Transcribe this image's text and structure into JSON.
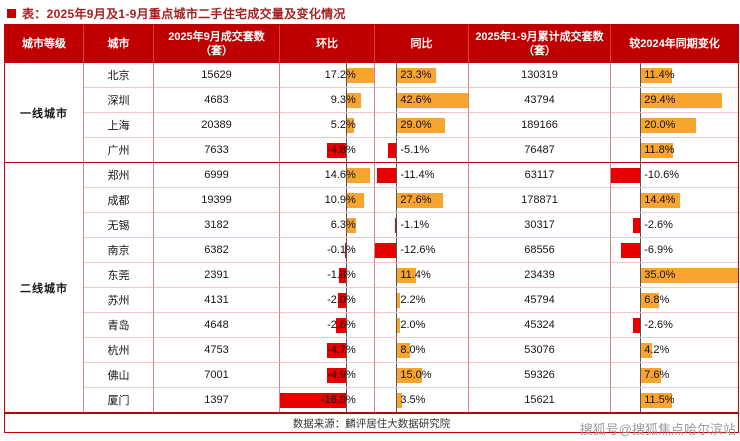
{
  "page": {
    "title": "表：2025年9月及1-9月重点城市二手住宅成交量及变化情况",
    "source": "数据来源：麟评居住大数据研究院",
    "watermark": "搜狐号@搜狐焦点哈尔滨站"
  },
  "colors": {
    "header_bg": "#c00000",
    "title_color": "#a52020",
    "positive_bar": "#f7a430",
    "negative_bar": "#e80000",
    "grid_v": "#d98080",
    "grid_h": "#f2c6c6"
  },
  "table": {
    "headers": [
      "城市等级",
      "城市",
      "2025年9月成交套数（套）",
      "环比",
      "同比",
      "2025年1-9月累计成交套数（套）",
      "较2024年同期变化"
    ],
    "bar_config": {
      "mom": {
        "axis_pct": 70,
        "pos_max": 17.2,
        "neg_max": 16.9,
        "text": "right"
      },
      "yoy": {
        "axis_pct": 23,
        "pos_max": 42.6,
        "neg_max": 12.6,
        "text": "left"
      },
      "chg": {
        "axis_pct": 23,
        "pos_max": 35.0,
        "neg_max": 10.6,
        "text": "left"
      }
    },
    "tiers": [
      {
        "label": "一线城市",
        "rows": [
          {
            "city": "北京",
            "sep": "15629",
            "mom": 17.2,
            "yoy": 23.3,
            "cum": "130319",
            "chg": 11.4
          },
          {
            "city": "深圳",
            "sep": "4683",
            "mom": 9.3,
            "yoy": 42.6,
            "cum": "43794",
            "chg": 29.4
          },
          {
            "city": "上海",
            "sep": "20389",
            "mom": 5.2,
            "yoy": 29.0,
            "cum": "189166",
            "chg": 20.0
          },
          {
            "city": "广州",
            "sep": "7633",
            "mom": -4.8,
            "yoy": -5.1,
            "cum": "76487",
            "chg": 11.8
          }
        ]
      },
      {
        "label": "二线城市",
        "rows": [
          {
            "city": "郑州",
            "sep": "6999",
            "mom": 14.6,
            "yoy": -11.4,
            "cum": "63117",
            "chg": -10.6
          },
          {
            "city": "成都",
            "sep": "19399",
            "mom": 10.9,
            "yoy": 27.6,
            "cum": "178871",
            "chg": 14.4
          },
          {
            "city": "无锡",
            "sep": "3182",
            "mom": 6.3,
            "yoy": -1.1,
            "cum": "30317",
            "chg": -2.6
          },
          {
            "city": "南京",
            "sep": "6382",
            "mom": -0.1,
            "yoy": -12.6,
            "cum": "68556",
            "chg": -6.9
          },
          {
            "city": "东莞",
            "sep": "2391",
            "mom": -1.8,
            "yoy": 11.4,
            "cum": "23439",
            "chg": 35.0
          },
          {
            "city": "苏州",
            "sep": "4131",
            "mom": -2.0,
            "yoy": 2.2,
            "cum": "45794",
            "chg": 6.8
          },
          {
            "city": "青岛",
            "sep": "4648",
            "mom": -2.6,
            "yoy": 2.0,
            "cum": "45324",
            "chg": -2.6
          },
          {
            "city": "杭州",
            "sep": "4753",
            "mom": -4.7,
            "yoy": 8.0,
            "cum": "53076",
            "chg": 4.2
          },
          {
            "city": "佛山",
            "sep": "7001",
            "mom": -4.9,
            "yoy": 15.0,
            "cum": "59326",
            "chg": 7.6
          },
          {
            "city": "厦门",
            "sep": "1397",
            "mom": -16.9,
            "yoy": 3.5,
            "cum": "15621",
            "chg": 11.5
          }
        ]
      }
    ]
  },
  "chart_data": {
    "type": "table",
    "title": "表：2025年9月及1-9月重点城市二手住宅成交量及变化情况",
    "columns": [
      "城市等级",
      "城市",
      "2025年9月成交套数（套）",
      "环比(%)",
      "同比(%)",
      "2025年1-9月累计成交套数（套）",
      "较2024年同期变化(%)"
    ],
    "rows": [
      [
        "一线城市",
        "北京",
        15629,
        17.2,
        23.3,
        130319,
        11.4
      ],
      [
        "一线城市",
        "深圳",
        4683,
        9.3,
        42.6,
        43794,
        29.4
      ],
      [
        "一线城市",
        "上海",
        20389,
        5.2,
        29.0,
        189166,
        20.0
      ],
      [
        "一线城市",
        "广州",
        7633,
        -4.8,
        -5.1,
        76487,
        11.8
      ],
      [
        "二线城市",
        "郑州",
        6999,
        14.6,
        -11.4,
        63117,
        -10.6
      ],
      [
        "二线城市",
        "成都",
        19399,
        10.9,
        27.6,
        178871,
        14.4
      ],
      [
        "二线城市",
        "无锡",
        3182,
        6.3,
        -1.1,
        30317,
        -2.6
      ],
      [
        "二线城市",
        "南京",
        6382,
        -0.1,
        -12.6,
        68556,
        -6.9
      ],
      [
        "二线城市",
        "东莞",
        2391,
        -1.8,
        11.4,
        23439,
        35.0
      ],
      [
        "二线城市",
        "苏州",
        4131,
        -2.0,
        2.2,
        45794,
        6.8
      ],
      [
        "二线城市",
        "青岛",
        4648,
        -2.6,
        2.0,
        45324,
        -2.6
      ],
      [
        "二线城市",
        "杭州",
        4753,
        -4.7,
        8.0,
        53076,
        4.2
      ],
      [
        "二线城市",
        "佛山",
        7001,
        -4.9,
        15.0,
        59326,
        7.6
      ],
      [
        "二线城市",
        "厦门",
        1397,
        -16.9,
        3.5,
        15621,
        11.5
      ]
    ],
    "notes": "环比/同比/较2024年同期变化三列含条件格式数据条：正值为橙色条，负值为红色条，单位%",
    "source": "数据来源：麟评居住大数据研究院"
  }
}
